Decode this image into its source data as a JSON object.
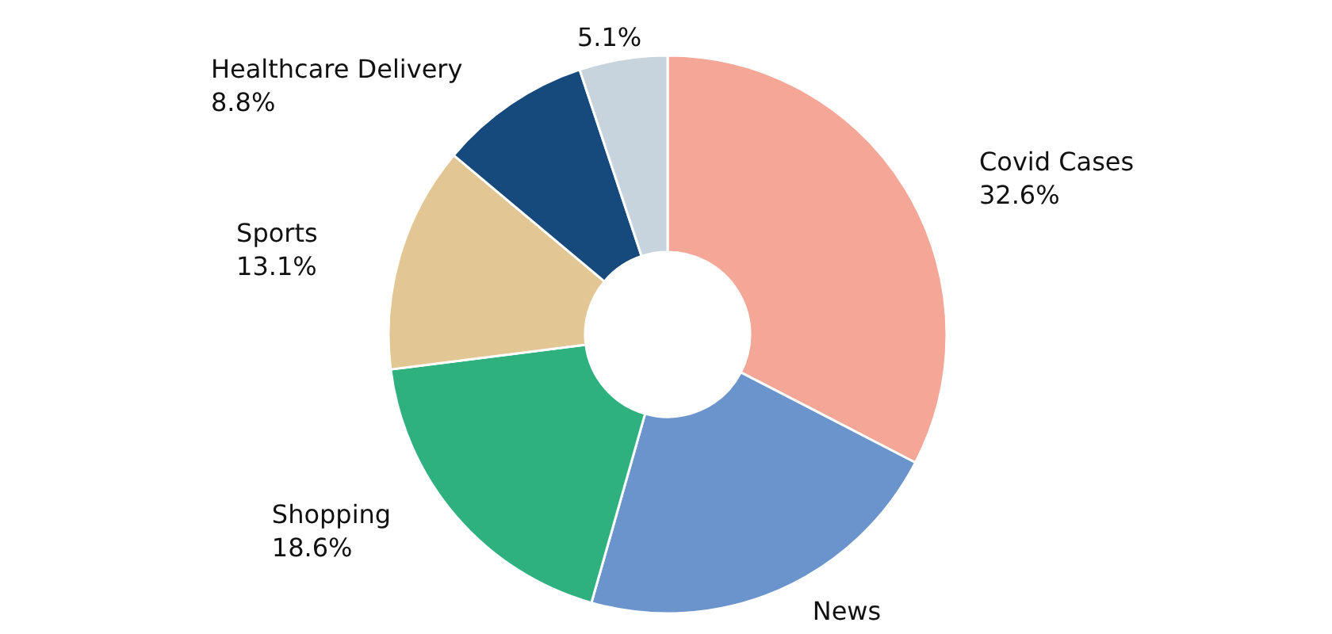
{
  "chart_data": {
    "type": "donut",
    "categories": [
      "Covid Cases",
      "News",
      "Shopping",
      "Sports",
      "Healthcare Delivery",
      null
    ],
    "values": [
      32.6,
      21.8,
      18.6,
      13.1,
      8.8,
      5.1
    ],
    "value_labels": [
      "32.6%",
      null,
      "18.6%",
      "13.1%",
      "8.8%",
      "5.1%"
    ],
    "colors": [
      "#f4a796",
      "#6b94cc",
      "#2eb07f",
      "#e2c693",
      "#174a7c",
      "#c8d4dd"
    ],
    "legend": false
  }
}
